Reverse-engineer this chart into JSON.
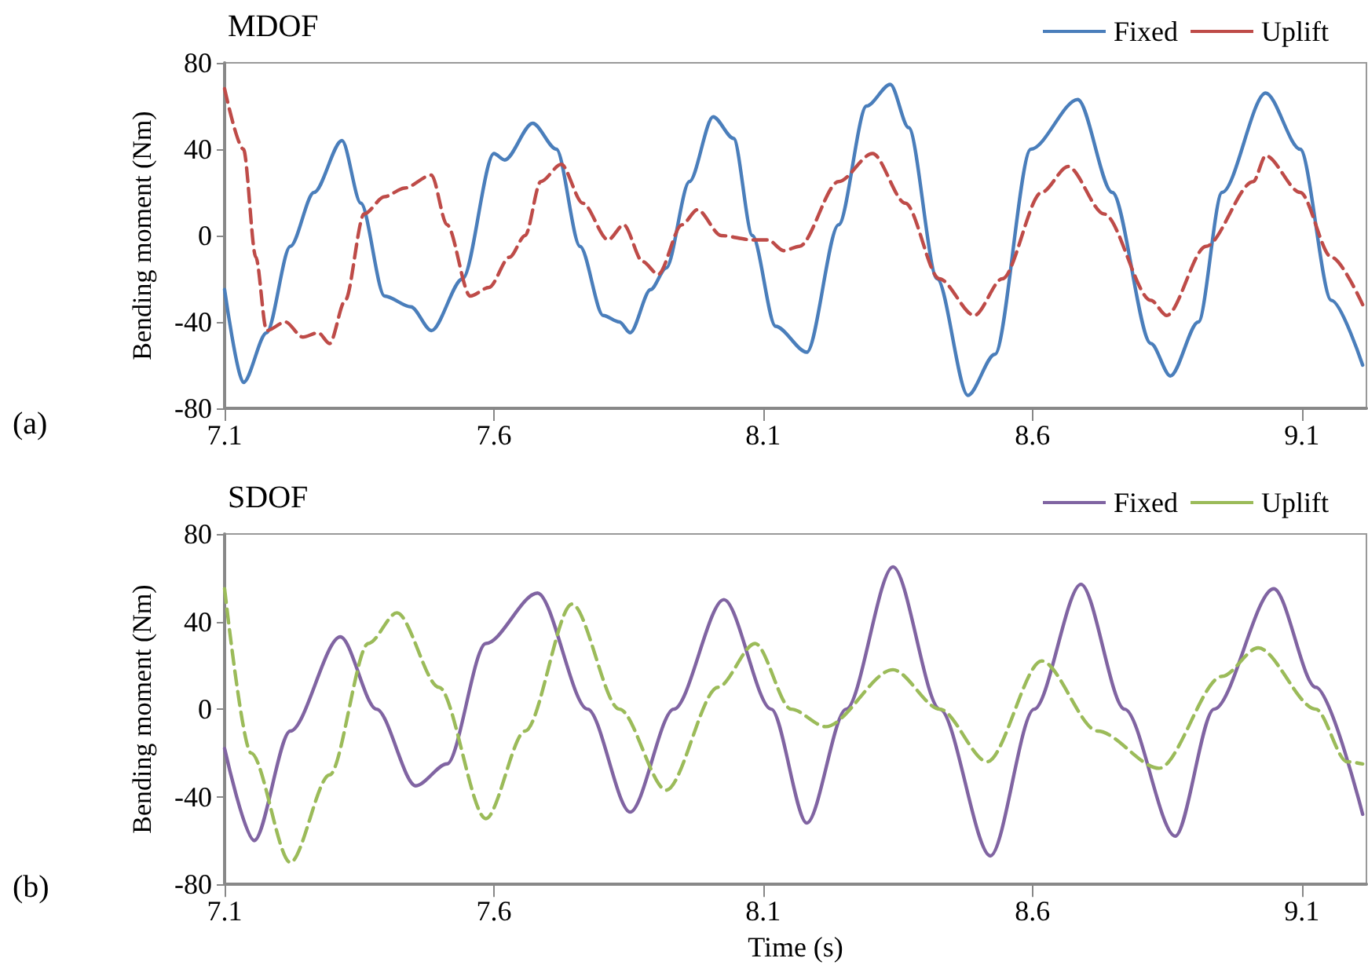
{
  "chart_data": [
    {
      "type": "line",
      "title": "MDOF",
      "ylabel": "Bending moment (Nm)",
      "annotations": [
        "(a)"
      ],
      "xlim": [
        7.1,
        9.22
      ],
      "xticks": [
        7.1,
        7.6,
        8.1,
        8.6,
        9.1
      ],
      "ylim": [
        -80,
        80
      ],
      "yticks": [
        -80,
        -40,
        0,
        40,
        80
      ],
      "grid": false,
      "legend": "top right",
      "marker": "none",
      "series": [
        {
          "name": "Fixed",
          "color": "#4a7ebb",
          "line_style": "solid",
          "x": [
            7.1,
            7.135,
            7.178,
            7.222,
            7.266,
            7.318,
            7.353,
            7.397,
            7.446,
            7.484,
            7.542,
            7.6,
            7.62,
            7.672,
            7.716,
            7.76,
            7.803,
            7.833,
            7.853,
            7.891,
            7.92,
            7.963,
            8.007,
            8.045,
            8.08,
            8.123,
            8.181,
            8.24,
            8.292,
            8.336,
            8.37,
            8.423,
            8.48,
            8.53,
            8.597,
            8.684,
            8.748,
            8.82,
            8.856,
            8.908,
            8.952,
            9.033,
            9.097,
            9.155,
            9.213
          ],
          "values": [
            -25,
            -68,
            -45,
            -5,
            20,
            44,
            15,
            -28,
            -33,
            -44,
            -20,
            38,
            35,
            52,
            40,
            -5,
            -37,
            -40,
            -45,
            -25,
            -15,
            25,
            55,
            45,
            0,
            -42,
            -54,
            5,
            60,
            70,
            50,
            -20,
            -74,
            -55,
            40,
            63,
            20,
            -50,
            -65,
            -40,
            20,
            66,
            40,
            -30,
            -60
          ]
        },
        {
          "name": "Uplift",
          "color": "#be4b48",
          "line_style": "dashed",
          "x": [
            7.1,
            7.135,
            7.158,
            7.178,
            7.213,
            7.245,
            7.274,
            7.295,
            7.324,
            7.359,
            7.397,
            7.434,
            7.484,
            7.513,
            7.556,
            7.591,
            7.629,
            7.658,
            7.687,
            7.725,
            7.765,
            7.812,
            7.841,
            7.876,
            7.905,
            7.949,
            7.978,
            8.022,
            8.08,
            8.109,
            8.138,
            8.167,
            8.24,
            8.303,
            8.364,
            8.427,
            8.492,
            8.544,
            8.617,
            8.666,
            8.733,
            8.82,
            8.849,
            8.922,
            9.01,
            9.033,
            9.097,
            9.155,
            9.213
          ],
          "values": [
            68,
            40,
            -10,
            -44,
            -40,
            -47,
            -45,
            -50,
            -30,
            10,
            18,
            22,
            28,
            5,
            -28,
            -24,
            -10,
            0,
            25,
            33,
            15,
            -2,
            5,
            -12,
            -18,
            5,
            12,
            0,
            -2,
            -2,
            -7,
            -5,
            25,
            38,
            15,
            -20,
            -37,
            -20,
            20,
            32,
            10,
            -30,
            -37,
            -5,
            25,
            37,
            20,
            -10,
            -32
          ]
        }
      ]
    },
    {
      "type": "line",
      "title": "SDOF",
      "xlabel": "Time (s)",
      "ylabel": "Bending moment (Nm)",
      "annotations": [
        "(b)"
      ],
      "xlim": [
        7.1,
        9.22
      ],
      "xticks": [
        7.1,
        7.6,
        8.1,
        8.6,
        9.1
      ],
      "ylim": [
        -80,
        80
      ],
      "yticks": [
        -80,
        -40,
        0,
        40,
        80
      ],
      "grid": false,
      "legend": "top right",
      "marker": "none",
      "series": [
        {
          "name": "Fixed",
          "color": "#8064a2",
          "line_style": "solid",
          "x": [
            7.1,
            7.155,
            7.222,
            7.315,
            7.382,
            7.455,
            7.513,
            7.585,
            7.681,
            7.774,
            7.853,
            7.934,
            8.027,
            8.115,
            8.181,
            8.254,
            8.341,
            8.428,
            8.522,
            8.603,
            8.69,
            8.771,
            8.865,
            8.937,
            9.048,
            9.126,
            9.213
          ],
          "values": [
            -18,
            -60,
            -10,
            33,
            0,
            -35,
            -25,
            30,
            53,
            0,
            -47,
            0,
            50,
            0,
            -52,
            0,
            65,
            0,
            -67,
            0,
            57,
            0,
            -58,
            0,
            55,
            10,
            -48
          ]
        },
        {
          "name": "Uplift",
          "color": "#9bbb59",
          "line_style": "dashed",
          "x": [
            7.1,
            7.149,
            7.222,
            7.295,
            7.367,
            7.42,
            7.498,
            7.585,
            7.658,
            7.745,
            7.833,
            7.92,
            8.016,
            8.085,
            8.152,
            8.216,
            8.341,
            8.428,
            8.516,
            8.617,
            8.721,
            8.835,
            8.952,
            9.019,
            9.126,
            9.184,
            9.213
          ],
          "values": [
            55,
            -20,
            -70,
            -30,
            30,
            44,
            10,
            -50,
            -10,
            48,
            0,
            -37,
            10,
            30,
            0,
            -8,
            18,
            0,
            -24,
            22,
            -10,
            -27,
            15,
            28,
            0,
            -24,
            -25
          ]
        }
      ]
    }
  ]
}
